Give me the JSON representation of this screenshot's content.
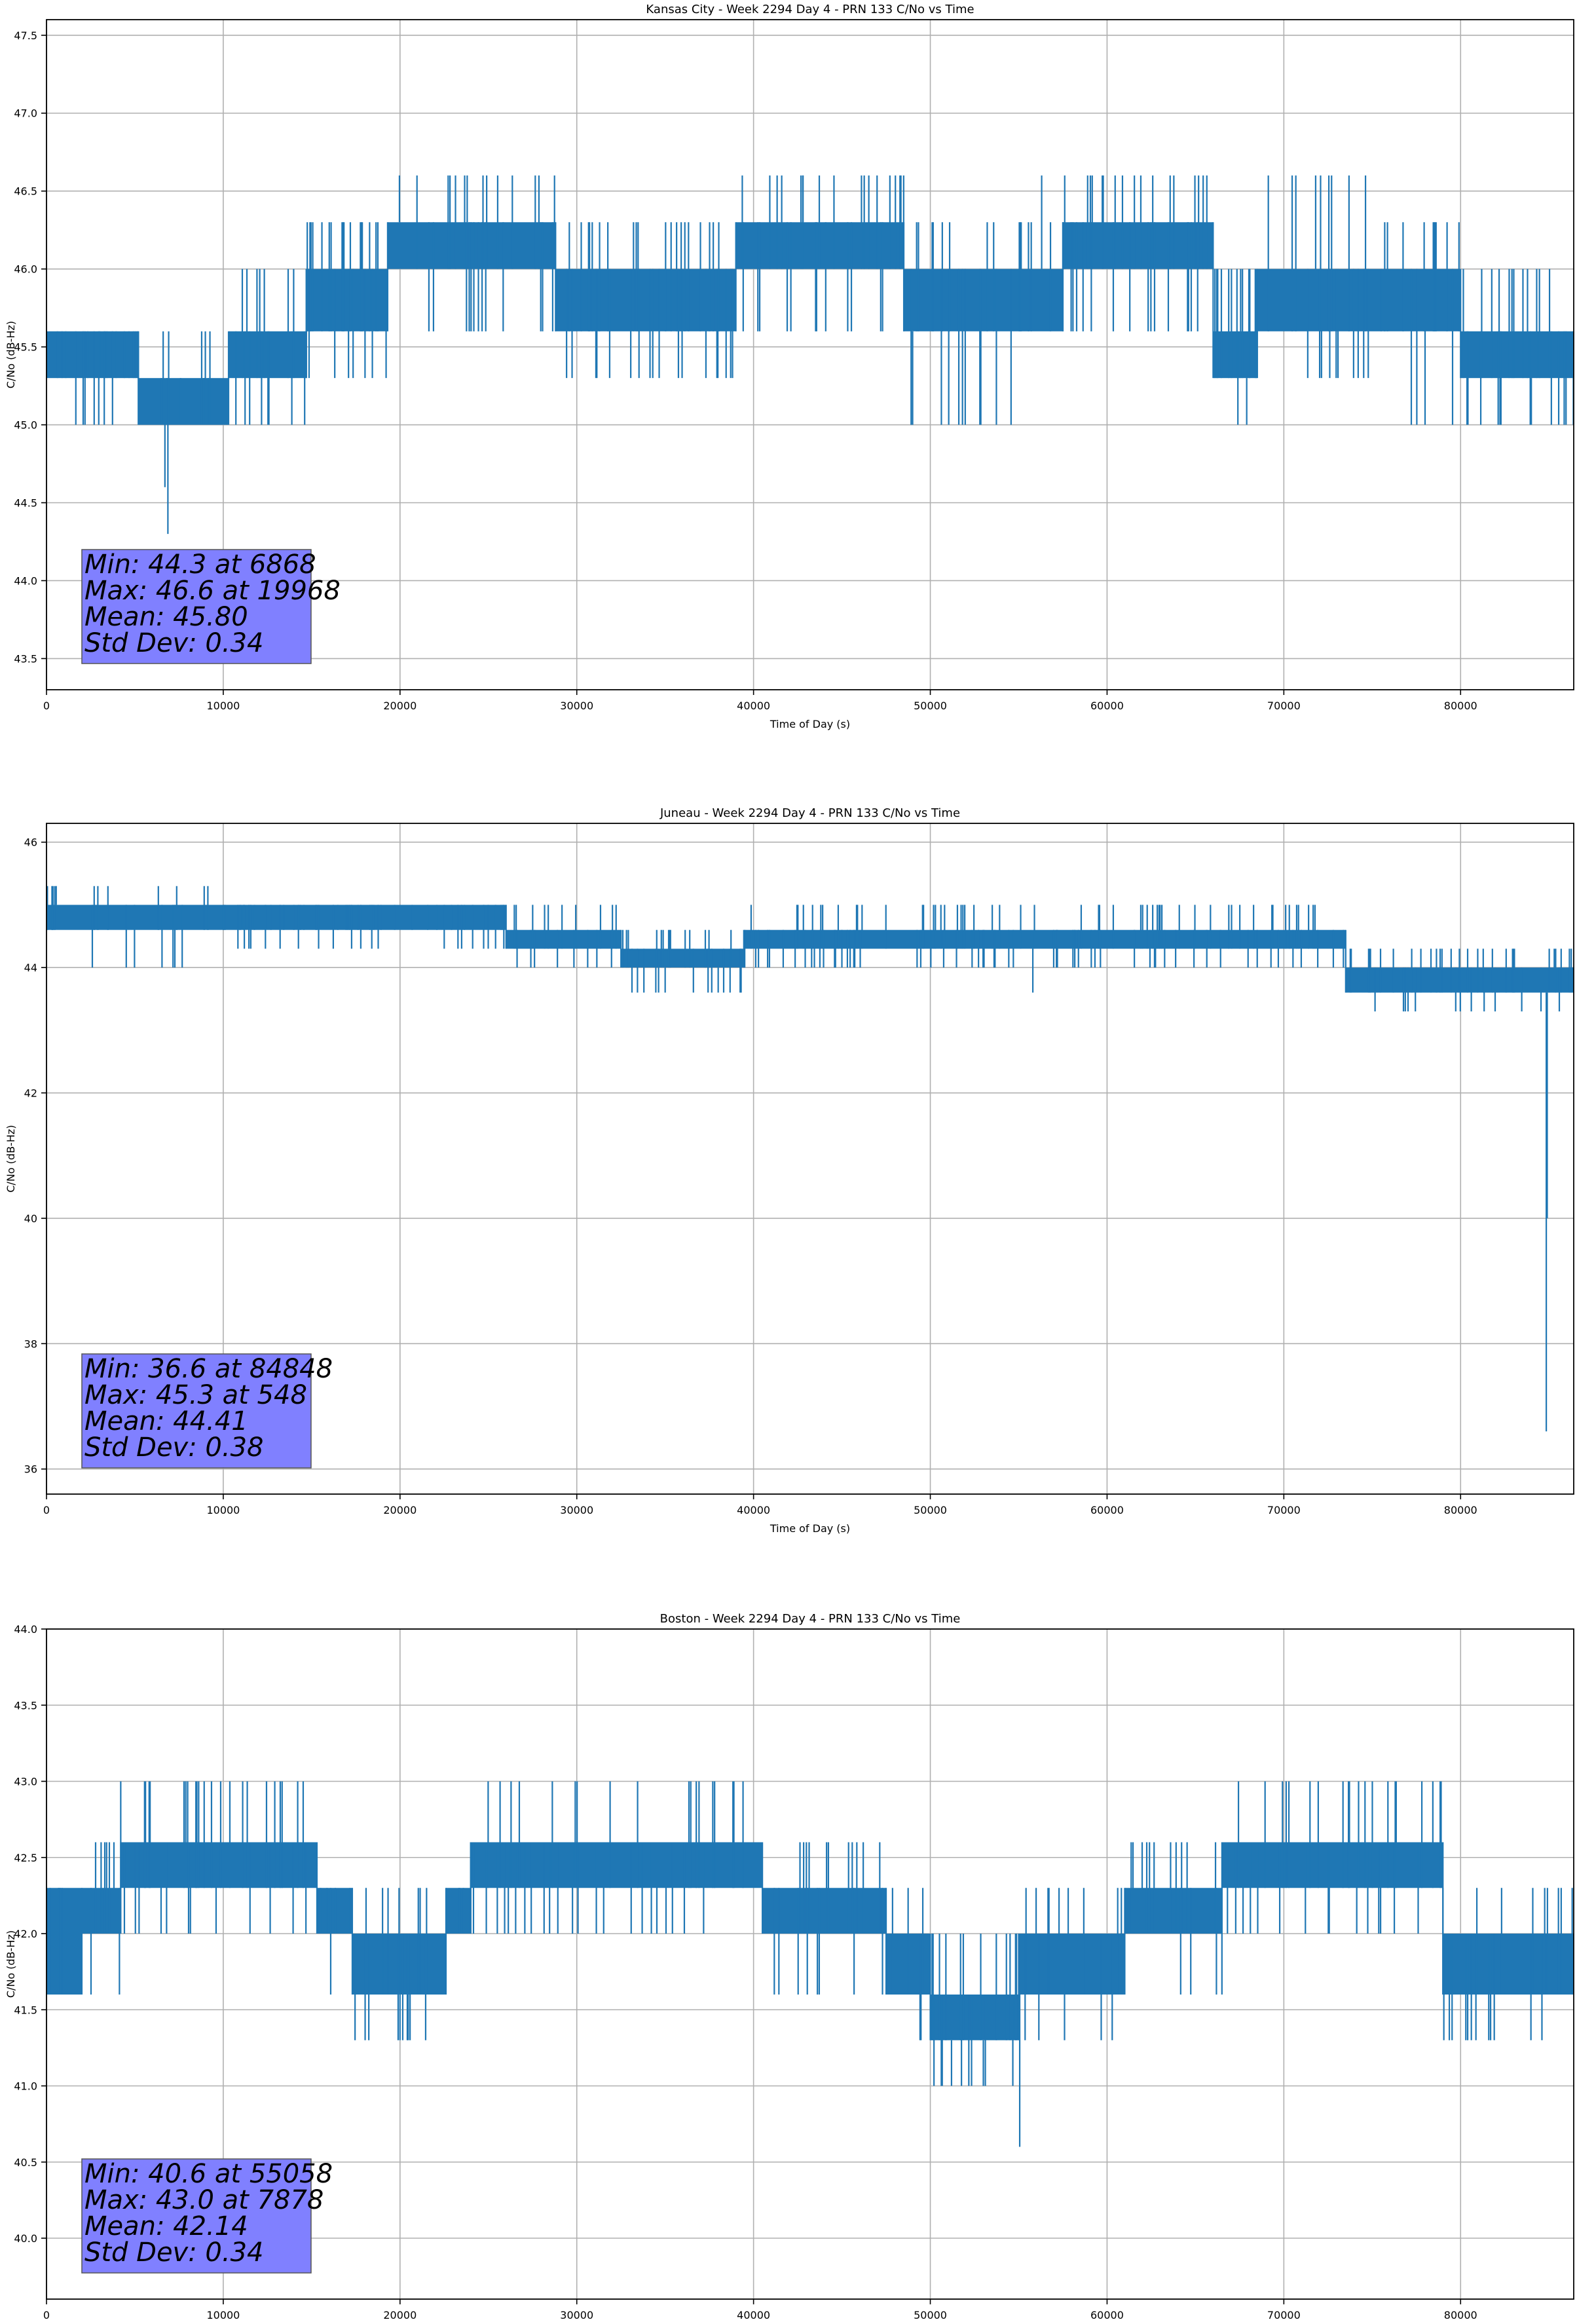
{
  "chart_data": [
    {
      "type": "line",
      "title": "Kansas City - Week 2294 Day 4 - PRN 133 C/No vs Time",
      "xlabel": "Time of Day (s)",
      "ylabel": "C/No (dB-Hz)",
      "xlim": [
        0,
        86400
      ],
      "ylim": [
        43.3,
        47.6
      ],
      "xticks": [
        0,
        10000,
        20000,
        30000,
        40000,
        50000,
        60000,
        70000,
        80000
      ],
      "yticks": [
        43.5,
        44.0,
        44.5,
        45.0,
        45.5,
        46.0,
        46.5,
        47.0,
        47.5
      ],
      "ytick_decimals": 1,
      "grid": true,
      "series_color": "#1f77b4",
      "stats": [
        "Min: 44.3 at 6868",
        "Max: 46.6 at 19968",
        "Mean: 45.80",
        "Std Dev: 0.34"
      ],
      "bands": [
        {
          "x0": 0,
          "x1": 5200,
          "lo": 45.3,
          "hi": 45.6,
          "up": 45.6,
          "dn": 45.0
        },
        {
          "x0": 5200,
          "x1": 10300,
          "lo": 45.0,
          "hi": 45.3,
          "up": 45.6,
          "dn": 45.0
        },
        {
          "x0": 10300,
          "x1": 14700,
          "lo": 45.3,
          "hi": 45.6,
          "up": 46.0,
          "dn": 45.0
        },
        {
          "x0": 14700,
          "x1": 19300,
          "lo": 45.6,
          "hi": 46.0,
          "up": 46.3,
          "dn": 45.3
        },
        {
          "x0": 19300,
          "x1": 28800,
          "lo": 46.0,
          "hi": 46.3,
          "up": 46.6,
          "dn": 45.6
        },
        {
          "x0": 28800,
          "x1": 39000,
          "lo": 45.6,
          "hi": 46.0,
          "up": 46.3,
          "dn": 45.3
        },
        {
          "x0": 39000,
          "x1": 48500,
          "lo": 46.0,
          "hi": 46.3,
          "up": 46.6,
          "dn": 45.6
        },
        {
          "x0": 48500,
          "x1": 57500,
          "lo": 45.6,
          "hi": 46.0,
          "up": 46.3,
          "dn": 45.0
        },
        {
          "x0": 57500,
          "x1": 66000,
          "lo": 46.0,
          "hi": 46.3,
          "up": 46.6,
          "dn": 45.6
        },
        {
          "x0": 66000,
          "x1": 68500,
          "lo": 45.3,
          "hi": 45.6,
          "up": 46.0,
          "dn": 45.0
        },
        {
          "x0": 68500,
          "x1": 75500,
          "lo": 45.6,
          "hi": 46.0,
          "up": 46.6,
          "dn": 45.3
        },
        {
          "x0": 75500,
          "x1": 80000,
          "lo": 45.6,
          "hi": 46.0,
          "up": 46.3,
          "dn": 45.0
        },
        {
          "x0": 80000,
          "x1": 86400,
          "lo": 45.3,
          "hi": 45.6,
          "up": 46.0,
          "dn": 45.0
        }
      ],
      "spikes": [
        [
          6868,
          44.3
        ],
        [
          6700,
          44.6
        ],
        [
          19968,
          46.6
        ],
        [
          23800,
          46.6
        ],
        [
          42800,
          46.6
        ],
        [
          56300,
          46.6
        ],
        [
          71800,
          46.6
        ],
        [
          67900,
          45.0
        ],
        [
          49000,
          45.0
        ],
        [
          84000,
          45.0
        ]
      ]
    },
    {
      "type": "line",
      "title": "Juneau - Week 2294 Day 4 - PRN 133 C/No vs Time",
      "xlabel": "Time of Day (s)",
      "ylabel": "C/No (dB-Hz)",
      "xlim": [
        0,
        86400
      ],
      "ylim": [
        35.6,
        46.3
      ],
      "xticks": [
        0,
        10000,
        20000,
        30000,
        40000,
        50000,
        60000,
        70000,
        80000
      ],
      "yticks": [
        36,
        38,
        40,
        42,
        44,
        46
      ],
      "ytick_decimals": 0,
      "grid": true,
      "series_color": "#1f77b4",
      "stats": [
        "Min: 36.6 at 84848",
        "Max: 45.3 at 548",
        "Mean: 44.41",
        "Std Dev: 0.38"
      ],
      "bands": [
        {
          "x0": 0,
          "x1": 10000,
          "lo": 44.6,
          "hi": 45.0,
          "up": 45.3,
          "dn": 44.0
        },
        {
          "x0": 10000,
          "x1": 26000,
          "lo": 44.6,
          "hi": 45.0,
          "up": 45.0,
          "dn": 44.3
        },
        {
          "x0": 26000,
          "x1": 32500,
          "lo": 44.3,
          "hi": 44.6,
          "up": 45.0,
          "dn": 44.0
        },
        {
          "x0": 32500,
          "x1": 39500,
          "lo": 44.0,
          "hi": 44.3,
          "up": 44.6,
          "dn": 43.6
        },
        {
          "x0": 39500,
          "x1": 73500,
          "lo": 44.3,
          "hi": 44.6,
          "up": 45.0,
          "dn": 44.0
        },
        {
          "x0": 73500,
          "x1": 86400,
          "lo": 43.6,
          "hi": 44.0,
          "up": 44.3,
          "dn": 43.3
        }
      ],
      "spikes": [
        [
          548,
          45.3
        ],
        [
          84848,
          36.6
        ],
        [
          84900,
          40.0
        ],
        [
          35000,
          43.6
        ],
        [
          38000,
          43.6
        ],
        [
          55800,
          43.6
        ],
        [
          85300,
          44.3
        ]
      ]
    },
    {
      "type": "line",
      "title": "Boston - Week 2294 Day 4 - PRN 133 C/No vs Time",
      "xlabel": "Time of Day (s)",
      "ylabel": "C/No (dB-Hz)",
      "xlim": [
        0,
        86400
      ],
      "ylim": [
        39.6,
        44.0
      ],
      "xticks": [
        0,
        10000,
        20000,
        30000,
        40000,
        50000,
        60000,
        70000,
        80000
      ],
      "yticks": [
        40.0,
        40.5,
        41.0,
        41.5,
        42.0,
        42.5,
        43.0,
        43.5,
        44.0
      ],
      "ytick_decimals": 1,
      "grid": true,
      "series_color": "#1f77b4",
      "stats": [
        "Min: 40.6 at 55058",
        "Max: 43.0 at 7878",
        "Mean: 42.14",
        "Std Dev: 0.34"
      ],
      "bands": [
        {
          "x0": 0,
          "x1": 2000,
          "lo": 41.6,
          "hi": 42.3,
          "up": 42.3,
          "dn": 41.6
        },
        {
          "x0": 2000,
          "x1": 4200,
          "lo": 42.0,
          "hi": 42.3,
          "up": 42.6,
          "dn": 41.6
        },
        {
          "x0": 4200,
          "x1": 15300,
          "lo": 42.3,
          "hi": 42.6,
          "up": 43.0,
          "dn": 42.0
        },
        {
          "x0": 15300,
          "x1": 17300,
          "lo": 42.0,
          "hi": 42.3,
          "up": 42.3,
          "dn": 41.6
        },
        {
          "x0": 17300,
          "x1": 22600,
          "lo": 41.6,
          "hi": 42.0,
          "up": 42.3,
          "dn": 41.3
        },
        {
          "x0": 22600,
          "x1": 24000,
          "lo": 42.0,
          "hi": 42.3,
          "up": 42.3,
          "dn": 41.6
        },
        {
          "x0": 24000,
          "x1": 40500,
          "lo": 42.3,
          "hi": 42.6,
          "up": 43.0,
          "dn": 42.0
        },
        {
          "x0": 40500,
          "x1": 47500,
          "lo": 42.0,
          "hi": 42.3,
          "up": 42.6,
          "dn": 41.6
        },
        {
          "x0": 47500,
          "x1": 50000,
          "lo": 41.6,
          "hi": 42.0,
          "up": 42.3,
          "dn": 41.3
        },
        {
          "x0": 50000,
          "x1": 55000,
          "lo": 41.3,
          "hi": 41.6,
          "up": 42.0,
          "dn": 41.0
        },
        {
          "x0": 55000,
          "x1": 61000,
          "lo": 41.6,
          "hi": 42.0,
          "up": 42.3,
          "dn": 41.3
        },
        {
          "x0": 61000,
          "x1": 66500,
          "lo": 42.0,
          "hi": 42.3,
          "up": 42.6,
          "dn": 41.6
        },
        {
          "x0": 66500,
          "x1": 79000,
          "lo": 42.3,
          "hi": 42.6,
          "up": 43.0,
          "dn": 42.0
        },
        {
          "x0": 79000,
          "x1": 86400,
          "lo": 41.6,
          "hi": 42.0,
          "up": 42.3,
          "dn": 41.3
        }
      ],
      "spikes": [
        [
          7878,
          43.0
        ],
        [
          55058,
          40.6
        ],
        [
          51200,
          41.0
        ],
        [
          53000,
          41.0
        ]
      ]
    }
  ]
}
